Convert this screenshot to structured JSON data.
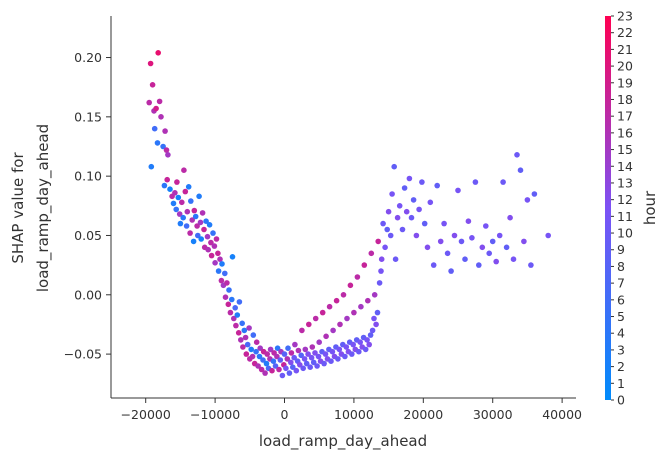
{
  "chart_data": {
    "type": "scatter",
    "xlabel": "load_ramp_day_ahead",
    "ylabel_lines": [
      "SHAP value for",
      "load_ramp_day_ahead"
    ],
    "xlim": [
      -25000,
      42000
    ],
    "ylim": [
      -0.087,
      0.235
    ],
    "x_ticks": [
      -20000,
      -10000,
      0,
      10000,
      20000,
      30000,
      40000
    ],
    "y_ticks": [
      -0.05,
      0.0,
      0.05,
      0.1,
      0.15,
      0.2
    ],
    "x_tick_labels": [
      "−20000",
      "−10000",
      "0",
      "10000",
      "20000",
      "30000",
      "40000"
    ],
    "y_tick_labels": [
      "−0.05",
      "0.00",
      "0.05",
      "0.10",
      "0.15",
      "0.20"
    ],
    "grid": false,
    "colorbar": {
      "label": "hour",
      "min": 0,
      "max": 23,
      "ticks": [
        0,
        1,
        2,
        3,
        4,
        5,
        6,
        7,
        8,
        9,
        10,
        11,
        12,
        13,
        14,
        15,
        16,
        17,
        18,
        19,
        20,
        21,
        22,
        23
      ],
      "tick_labels": [
        "0",
        "1",
        "2",
        "3",
        "4",
        "5",
        "6",
        "7",
        "8",
        "9",
        "10",
        "11",
        "12",
        "13",
        "14",
        "15",
        "16",
        "17",
        "18",
        "19",
        "20",
        "21",
        "22",
        "23"
      ],
      "color_low": "#008bfb",
      "color_mid": "#7c52f5",
      "color_high": "#ff0052"
    },
    "points": [
      [
        -19500,
        0.162,
        17
      ],
      [
        -19300,
        0.195,
        20
      ],
      [
        -19000,
        0.177,
        18
      ],
      [
        -18800,
        0.155,
        16
      ],
      [
        -18500,
        0.157,
        19
      ],
      [
        -18200,
        0.204,
        21
      ],
      [
        -18000,
        0.163,
        17
      ],
      [
        -17800,
        0.15,
        16
      ],
      [
        -18700,
        0.14,
        6
      ],
      [
        -19200,
        0.108,
        3
      ],
      [
        -18300,
        0.128,
        4
      ],
      [
        -17500,
        0.125,
        5
      ],
      [
        -17200,
        0.138,
        16
      ],
      [
        -17000,
        0.122,
        17
      ],
      [
        -16800,
        0.118,
        15
      ],
      [
        -17300,
        0.092,
        4
      ],
      [
        -16900,
        0.097,
        18
      ],
      [
        -16500,
        0.089,
        2
      ],
      [
        -16200,
        0.083,
        17
      ],
      [
        -16000,
        0.077,
        3
      ],
      [
        -15800,
        0.086,
        16
      ],
      [
        -15600,
        0.072,
        5
      ],
      [
        -15500,
        0.095,
        18
      ],
      [
        -15300,
        0.082,
        2
      ],
      [
        -15100,
        0.068,
        15
      ],
      [
        -15000,
        0.06,
        3
      ],
      [
        -14800,
        0.078,
        17
      ],
      [
        -14600,
        0.065,
        4
      ],
      [
        -14500,
        0.105,
        17
      ],
      [
        -14300,
        0.087,
        18
      ],
      [
        -14100,
        0.058,
        6
      ],
      [
        -14000,
        0.07,
        16
      ],
      [
        -13800,
        0.091,
        3
      ],
      [
        -13600,
        0.052,
        17
      ],
      [
        -13500,
        0.079,
        5
      ],
      [
        -13300,
        0.063,
        16
      ],
      [
        -13100,
        0.045,
        2
      ],
      [
        -13000,
        0.071,
        18
      ],
      [
        -12800,
        0.066,
        4
      ],
      [
        -12600,
        0.058,
        17
      ],
      [
        -12500,
        0.05,
        6
      ],
      [
        -12300,
        0.083,
        3
      ],
      [
        -12100,
        0.061,
        15
      ],
      [
        -12000,
        0.047,
        2
      ],
      [
        -11800,
        0.069,
        16
      ],
      [
        -11600,
        0.055,
        18
      ],
      [
        -11500,
        0.04,
        17
      ],
      [
        -11300,
        0.062,
        4
      ],
      [
        -11100,
        0.049,
        15
      ],
      [
        -11000,
        0.038,
        16
      ],
      [
        -10800,
        0.059,
        3
      ],
      [
        -10600,
        0.044,
        17
      ],
      [
        -10500,
        0.033,
        18
      ],
      [
        -10300,
        0.052,
        5
      ],
      [
        -10100,
        0.041,
        16
      ],
      [
        -10000,
        0.027,
        15
      ],
      [
        -9800,
        0.047,
        17
      ],
      [
        -9600,
        0.035,
        18
      ],
      [
        -9500,
        0.02,
        4
      ],
      [
        -9300,
        0.03,
        16
      ],
      [
        -9100,
        0.012,
        17
      ],
      [
        -9000,
        0.026,
        3
      ],
      [
        -8800,
        0.008,
        15
      ],
      [
        -8600,
        0.018,
        6
      ],
      [
        -8500,
        -0.002,
        16
      ],
      [
        -8300,
        0.01,
        17
      ],
      [
        -8100,
        -0.008,
        18
      ],
      [
        -8000,
        0.004,
        5
      ],
      [
        -7800,
        -0.015,
        17
      ],
      [
        -7600,
        -0.004,
        4
      ],
      [
        -7500,
        0.032,
        2
      ],
      [
        -7300,
        -0.02,
        16
      ],
      [
        -7100,
        -0.011,
        7
      ],
      [
        -7000,
        -0.026,
        17
      ],
      [
        -6800,
        -0.017,
        3
      ],
      [
        -6600,
        -0.032,
        18
      ],
      [
        -6500,
        -0.006,
        6
      ],
      [
        -6300,
        -0.038,
        16
      ],
      [
        -6100,
        -0.024,
        5
      ],
      [
        -6000,
        -0.044,
        17
      ],
      [
        -5800,
        -0.03,
        4
      ],
      [
        -5600,
        -0.036,
        16
      ],
      [
        -5500,
        -0.05,
        18
      ],
      [
        -5300,
        -0.042,
        7
      ],
      [
        -5100,
        -0.028,
        15
      ],
      [
        -5000,
        -0.054,
        17
      ],
      [
        -4800,
        -0.046,
        3
      ],
      [
        -4600,
        -0.052,
        16
      ],
      [
        -4500,
        -0.034,
        6
      ],
      [
        -4300,
        -0.058,
        18
      ],
      [
        -4100,
        -0.048,
        5
      ],
      [
        -4000,
        -0.04,
        17
      ],
      [
        -3800,
        -0.06,
        16
      ],
      [
        -3600,
        -0.052,
        4
      ],
      [
        -3500,
        -0.045,
        15
      ],
      [
        -3300,
        -0.063,
        17
      ],
      [
        -3100,
        -0.055,
        6
      ],
      [
        -3000,
        -0.048,
        18
      ],
      [
        -2800,
        -0.066,
        16
      ],
      [
        -2600,
        -0.058,
        3
      ],
      [
        -2500,
        -0.05,
        17
      ],
      [
        -2300,
        -0.062,
        7
      ],
      [
        -2100,
        -0.054,
        16
      ],
      [
        -2000,
        -0.046,
        15
      ],
      [
        -1800,
        -0.064,
        18
      ],
      [
        -1600,
        -0.056,
        5
      ],
      [
        -1500,
        -0.049,
        17
      ],
      [
        -1300,
        -0.06,
        8
      ],
      [
        -1100,
        -0.052,
        16
      ],
      [
        -1000,
        -0.045,
        4
      ],
      [
        -800,
        -0.063,
        17
      ],
      [
        -600,
        -0.055,
        9
      ],
      [
        -500,
        -0.048,
        15
      ],
      [
        -300,
        -0.068,
        10
      ],
      [
        -100,
        -0.059,
        18
      ],
      [
        0,
        -0.05,
        8
      ],
      [
        200,
        -0.062,
        11
      ],
      [
        400,
        -0.054,
        16
      ],
      [
        500,
        -0.045,
        6
      ],
      [
        700,
        -0.066,
        9
      ],
      [
        900,
        -0.057,
        12
      ],
      [
        1000,
        -0.049,
        17
      ],
      [
        1200,
        -0.061,
        8
      ],
      [
        1400,
        -0.053,
        10
      ],
      [
        1500,
        -0.042,
        15
      ],
      [
        1700,
        -0.064,
        11
      ],
      [
        1900,
        -0.056,
        9
      ],
      [
        2000,
        -0.047,
        16
      ],
      [
        2200,
        -0.059,
        12
      ],
      [
        2400,
        -0.051,
        8
      ],
      [
        2500,
        -0.03,
        17
      ],
      [
        2700,
        -0.062,
        10
      ],
      [
        2900,
        -0.054,
        11
      ],
      [
        3000,
        -0.046,
        15
      ],
      [
        3200,
        -0.058,
        9
      ],
      [
        3400,
        -0.05,
        12
      ],
      [
        3500,
        -0.025,
        18
      ],
      [
        3700,
        -0.061,
        10
      ],
      [
        3900,
        -0.053,
        11
      ],
      [
        4000,
        -0.044,
        16
      ],
      [
        4200,
        -0.057,
        9
      ],
      [
        4400,
        -0.049,
        12
      ],
      [
        4500,
        -0.02,
        17
      ],
      [
        4700,
        -0.06,
        10
      ],
      [
        4900,
        -0.052,
        11
      ],
      [
        5000,
        -0.04,
        15
      ],
      [
        5200,
        -0.056,
        12
      ],
      [
        5400,
        -0.048,
        9
      ],
      [
        5500,
        -0.015,
        18
      ],
      [
        5700,
        -0.058,
        10
      ],
      [
        5900,
        -0.05,
        11
      ],
      [
        6000,
        -0.035,
        16
      ],
      [
        6200,
        -0.054,
        12
      ],
      [
        6400,
        -0.046,
        9
      ],
      [
        6500,
        -0.01,
        17
      ],
      [
        6700,
        -0.056,
        10
      ],
      [
        6900,
        -0.048,
        11
      ],
      [
        7000,
        -0.03,
        15
      ],
      [
        7200,
        -0.052,
        12
      ],
      [
        7400,
        -0.044,
        9
      ],
      [
        7500,
        -0.005,
        18
      ],
      [
        7700,
        -0.054,
        10
      ],
      [
        7900,
        -0.046,
        11
      ],
      [
        8000,
        -0.025,
        16
      ],
      [
        8200,
        -0.05,
        12
      ],
      [
        8400,
        -0.042,
        9
      ],
      [
        8500,
        0.0,
        17
      ],
      [
        8700,
        -0.052,
        10
      ],
      [
        8900,
        -0.044,
        11
      ],
      [
        9000,
        -0.02,
        15
      ],
      [
        9200,
        -0.048,
        12
      ],
      [
        9400,
        -0.04,
        9
      ],
      [
        9500,
        0.008,
        18
      ],
      [
        9700,
        -0.05,
        10
      ],
      [
        9900,
        -0.042,
        11
      ],
      [
        10000,
        -0.015,
        16
      ],
      [
        10200,
        -0.046,
        12
      ],
      [
        10400,
        -0.038,
        9
      ],
      [
        10500,
        0.015,
        17
      ],
      [
        10700,
        -0.048,
        10
      ],
      [
        10900,
        -0.04,
        11
      ],
      [
        11000,
        -0.01,
        15
      ],
      [
        11200,
        -0.044,
        12
      ],
      [
        11400,
        -0.036,
        9
      ],
      [
        11500,
        0.025,
        18
      ],
      [
        11700,
        -0.046,
        10
      ],
      [
        11900,
        -0.038,
        11
      ],
      [
        12000,
        -0.005,
        16
      ],
      [
        12200,
        -0.042,
        12
      ],
      [
        12400,
        -0.034,
        9
      ],
      [
        12500,
        0.035,
        17
      ],
      [
        12700,
        -0.03,
        10
      ],
      [
        12900,
        -0.02,
        11
      ],
      [
        13000,
        0.0,
        15
      ],
      [
        13200,
        -0.025,
        12
      ],
      [
        13400,
        -0.015,
        9
      ],
      [
        13500,
        0.045,
        18
      ],
      [
        13700,
        0.01,
        10
      ],
      [
        13900,
        0.02,
        11
      ],
      [
        14000,
        0.03,
        12
      ],
      [
        14200,
        0.06,
        10
      ],
      [
        14500,
        0.04,
        11
      ],
      [
        14800,
        0.055,
        9
      ],
      [
        15000,
        0.07,
        12
      ],
      [
        15300,
        0.05,
        10
      ],
      [
        15500,
        0.085,
        11
      ],
      [
        15800,
        0.108,
        9
      ],
      [
        16000,
        0.03,
        10
      ],
      [
        16300,
        0.065,
        12
      ],
      [
        16600,
        0.075,
        11
      ],
      [
        17000,
        0.055,
        10
      ],
      [
        17300,
        0.09,
        9
      ],
      [
        17600,
        0.07,
        12
      ],
      [
        18000,
        0.098,
        11
      ],
      [
        18300,
        0.065,
        10
      ],
      [
        18600,
        0.08,
        9
      ],
      [
        19000,
        0.05,
        12
      ],
      [
        19400,
        0.072,
        11
      ],
      [
        19800,
        0.095,
        10
      ],
      [
        20200,
        0.06,
        9
      ],
      [
        20600,
        0.04,
        12
      ],
      [
        21000,
        0.078,
        11
      ],
      [
        21500,
        0.025,
        10
      ],
      [
        22000,
        0.092,
        9
      ],
      [
        22500,
        0.045,
        12
      ],
      [
        23000,
        0.06,
        11
      ],
      [
        23500,
        0.035,
        10
      ],
      [
        24000,
        0.02,
        9
      ],
      [
        24500,
        0.05,
        12
      ],
      [
        25000,
        0.088,
        11
      ],
      [
        25500,
        0.045,
        10
      ],
      [
        26000,
        0.03,
        9
      ],
      [
        26500,
        0.062,
        12
      ],
      [
        27000,
        0.048,
        11
      ],
      [
        27500,
        0.095,
        10
      ],
      [
        28000,
        0.025,
        9
      ],
      [
        28500,
        0.04,
        12
      ],
      [
        29000,
        0.058,
        11
      ],
      [
        29500,
        0.035,
        10
      ],
      [
        30000,
        0.045,
        9
      ],
      [
        30500,
        0.028,
        12
      ],
      [
        31000,
        0.05,
        11
      ],
      [
        31500,
        0.095,
        10
      ],
      [
        32000,
        0.04,
        9
      ],
      [
        32500,
        0.065,
        12
      ],
      [
        33000,
        0.03,
        11
      ],
      [
        33500,
        0.118,
        10
      ],
      [
        34000,
        0.105,
        9
      ],
      [
        34500,
        0.045,
        12
      ],
      [
        35000,
        0.08,
        11
      ],
      [
        35500,
        0.025,
        10
      ],
      [
        36000,
        0.085,
        9
      ],
      [
        38000,
        0.05,
        11
      ]
    ]
  }
}
